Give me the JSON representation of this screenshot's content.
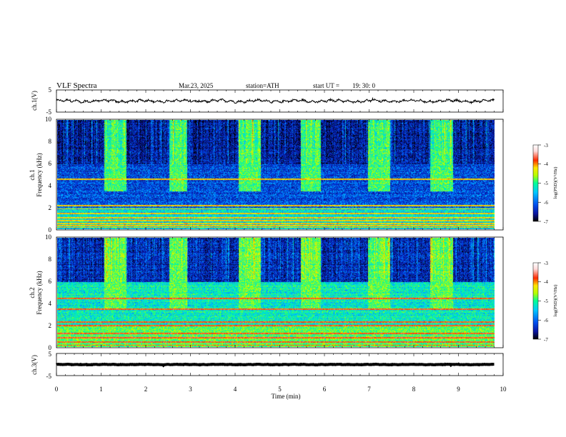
{
  "header": {
    "title": "VLF  Spectra",
    "date": "Mar.23, 2025",
    "station": "station=ATH",
    "start_label": "start  UT  =",
    "start_time": "19: 30: 0"
  },
  "colormap": [
    "#000000",
    "#0a14a0",
    "#0050f0",
    "#00c8ff",
    "#00ff96",
    "#b4ff00",
    "#ffe600",
    "#ff2a00",
    "#ffdcdc",
    "#ffffff"
  ],
  "chart_data": [
    {
      "type": "line",
      "id": "ch1_waveform",
      "ylabel": "ch.1(V)",
      "yticks": [
        "5",
        "-5"
      ],
      "ylim": [
        -5,
        5
      ],
      "xlim": [
        0,
        10
      ],
      "data_extent_min": 9.8,
      "level": 0,
      "amplitude": 0.9
    },
    {
      "type": "heatmap",
      "id": "ch1_spectrogram",
      "ylabel": "Frequency  (kHz)",
      "channel_label": "ch.1",
      "yticks": [
        "0",
        "2",
        "4",
        "6",
        "8",
        "10"
      ],
      "ylim": [
        0,
        10
      ],
      "xlim": [
        0,
        10
      ],
      "data_extent_min": 9.8,
      "colorbar": {
        "label": "log(PSD)(V²/Hz)",
        "ticks": [
          "-3",
          "-4",
          "-5",
          "-6",
          "-7"
        ],
        "range": [
          -7,
          -3
        ]
      },
      "background_psd": {
        "below_2khz": -5.5,
        "2_to_6khz": -6.2,
        "above_6khz": -6.5
      },
      "bright_bursts_min": [
        [
          1.05,
          1.55
        ],
        [
          2.5,
          2.9
        ],
        [
          4.05,
          4.55
        ],
        [
          5.45,
          5.9
        ],
        [
          6.95,
          7.45
        ],
        [
          8.35,
          8.85
        ]
      ],
      "burst_psd": -5.1,
      "tone_lines_khz": [
        0.2,
        0.35,
        0.55,
        0.8,
        1.1,
        1.45,
        1.9,
        2.2,
        4.6
      ],
      "tone_psd": -4.3
    },
    {
      "type": "heatmap",
      "id": "ch2_spectrogram",
      "ylabel": "Frequency  (kHz)",
      "channel_label": "ch.2",
      "yticks": [
        "0",
        "2",
        "4",
        "6",
        "8",
        "10"
      ],
      "ylim": [
        0,
        10
      ],
      "xlim": [
        0,
        10
      ],
      "data_extent_min": 9.8,
      "colorbar": {
        "label": "log(PSD)(V²/Hz)",
        "ticks": [
          "-3",
          "-4",
          "-5",
          "-6",
          "-7"
        ],
        "range": [
          -7,
          -3
        ]
      },
      "background_psd": {
        "below_2khz": -5.0,
        "2_to_6khz": -5.4,
        "above_6khz": -6.4
      },
      "bright_bursts_min": [
        [
          1.05,
          1.55
        ],
        [
          2.5,
          2.9
        ],
        [
          4.05,
          4.55
        ],
        [
          5.45,
          5.9
        ],
        [
          6.95,
          7.45
        ],
        [
          8.35,
          8.85
        ]
      ],
      "burst_psd": -5.0,
      "tone_lines_khz": [
        0.2,
        0.5,
        0.9,
        1.3,
        2.0,
        2.3,
        3.5,
        4.5
      ],
      "tone_psd": -3.9
    },
    {
      "type": "line",
      "id": "ch3_waveform",
      "ylabel": "ch.3(V)",
      "yticks": [
        "5",
        "-5"
      ],
      "ylim": [
        -5,
        5
      ],
      "xlim": [
        0,
        10
      ],
      "data_extent_min": 9.8,
      "level": 0,
      "amplitude": 0.15
    }
  ],
  "xaxis": {
    "ticks": [
      "0",
      "1",
      "2",
      "3",
      "4",
      "5",
      "6",
      "7",
      "8",
      "9",
      "10"
    ],
    "label": "Time  (min)"
  }
}
